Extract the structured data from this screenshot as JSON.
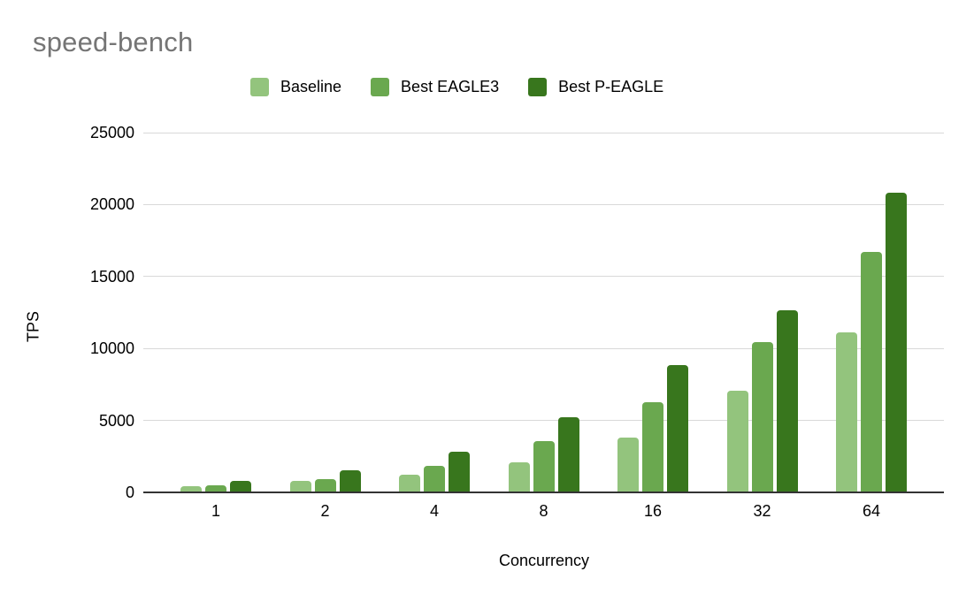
{
  "chart_data": {
    "type": "bar",
    "title": "speed-bench",
    "xlabel": "Concurrency",
    "ylabel": "TPS",
    "categories": [
      "1",
      "2",
      "4",
      "8",
      "16",
      "32",
      "64"
    ],
    "series": [
      {
        "name": "Baseline",
        "color": "#93c47d",
        "values": [
          450,
          780,
          1200,
          2100,
          3800,
          7050,
          11100
        ]
      },
      {
        "name": "Best EAGLE3",
        "color": "#6aa84f",
        "values": [
          480,
          900,
          1850,
          3550,
          6250,
          10450,
          16700
        ]
      },
      {
        "name": "Best P-EAGLE",
        "color": "#38761d",
        "values": [
          800,
          1550,
          2850,
          5250,
          8850,
          12650,
          20800
        ]
      }
    ],
    "ylim": [
      0,
      25000
    ],
    "yticks": [
      0,
      5000,
      10000,
      15000,
      20000,
      25000
    ],
    "grid": true,
    "legend_position": "top",
    "colors": {
      "title_text": "#757575",
      "axis_text": "#000000",
      "gridline": "#d9d9d9",
      "axis_line": "#333333",
      "background": "#ffffff"
    }
  }
}
